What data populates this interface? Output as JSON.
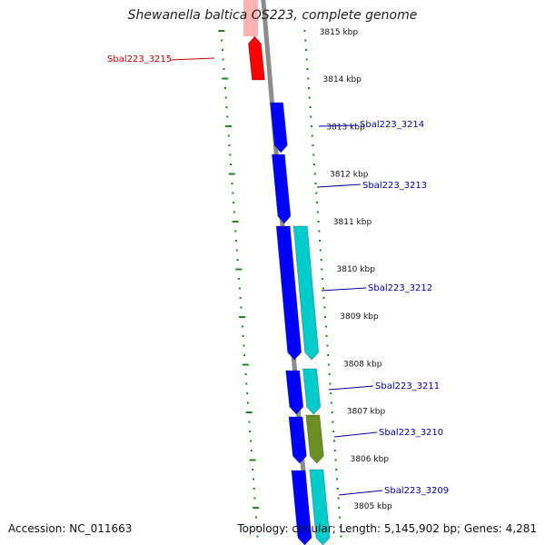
{
  "title": "Shewanella baltica OS223, complete genome",
  "accession": "Accession: NC_011663",
  "summary": "Topology: circular; Length: 5,145,902 bp; Genes: 4,281",
  "colors": {
    "backbone": "#8c8c8c",
    "tick": "#1a8a1a",
    "scale_text": "#111111",
    "red_gene": "#ff0000",
    "blue_gene": "#0000ff",
    "cyan_gene": "#00cccc",
    "olive_gene": "#6b8e23"
  },
  "scale_labels": [
    "3815 kbp",
    "3814 kbp",
    "3813 kbp",
    "3812 kbp",
    "3811 kbp",
    "3810 kbp",
    "3809 kbp",
    "3808 kbp",
    "3807 kbp",
    "3806 kbp",
    "3805 kbp"
  ],
  "gene_labels": [
    {
      "text": "Sbal223_3215",
      "color": "#cc0000"
    },
    {
      "text": "Sbal223_3214",
      "color": "#0000aa"
    },
    {
      "text": "Sbal223_3213",
      "color": "#0000aa"
    },
    {
      "text": "Sbal223_3212",
      "color": "#0000aa"
    },
    {
      "text": "Sbal223_3211",
      "color": "#0000aa"
    },
    {
      "text": "Sbal223_3210",
      "color": "#0000aa"
    },
    {
      "text": "Sbal223_3209",
      "color": "#0000aa"
    }
  ]
}
